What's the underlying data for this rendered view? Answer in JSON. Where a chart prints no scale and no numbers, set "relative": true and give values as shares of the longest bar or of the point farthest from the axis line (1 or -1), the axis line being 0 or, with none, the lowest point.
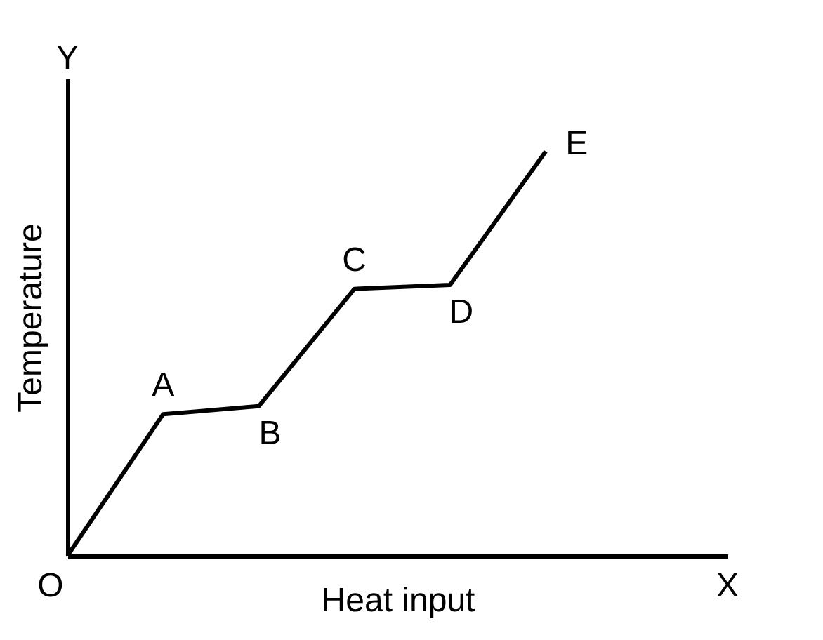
{
  "chart_data": {
    "type": "line",
    "relative": true,
    "xlabel": "Heat input",
    "ylabel": "Temperature",
    "categories": [
      null,
      null,
      null,
      null,
      null,
      null
    ],
    "values": [
      0,
      0.35,
      0.37,
      0.66,
      0.67,
      1.0
    ],
    "color": "#000000",
    "grid": false,
    "legend": false,
    "marker": "none",
    "line_style": "solid",
    "tick_labels": false,
    "annotations": [
      "O",
      "X",
      "Y",
      "A",
      "B",
      "C",
      "D",
      "E"
    ]
  }
}
